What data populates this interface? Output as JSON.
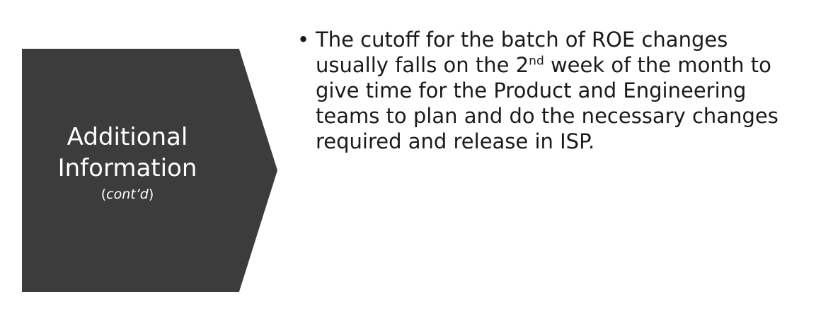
{
  "section": {
    "title_line1": "Additional",
    "title_line2": "Information",
    "subtitle_open": "(",
    "subtitle_italic": "cont’d",
    "subtitle_close": ")"
  },
  "bullets": [
    {
      "text_before_sup": "The cutoff for the batch of ROE changes usually falls on the 2",
      "sup": "nd",
      "text_after_sup": " week of the month to give time for the Product and Engineering teams to plan and do the necessary changes required and release in ISP."
    }
  ],
  "colors": {
    "chevron_fill": "#3c3c3c",
    "chevron_text": "#ffffff",
    "body_text": "#1a1a1a"
  }
}
